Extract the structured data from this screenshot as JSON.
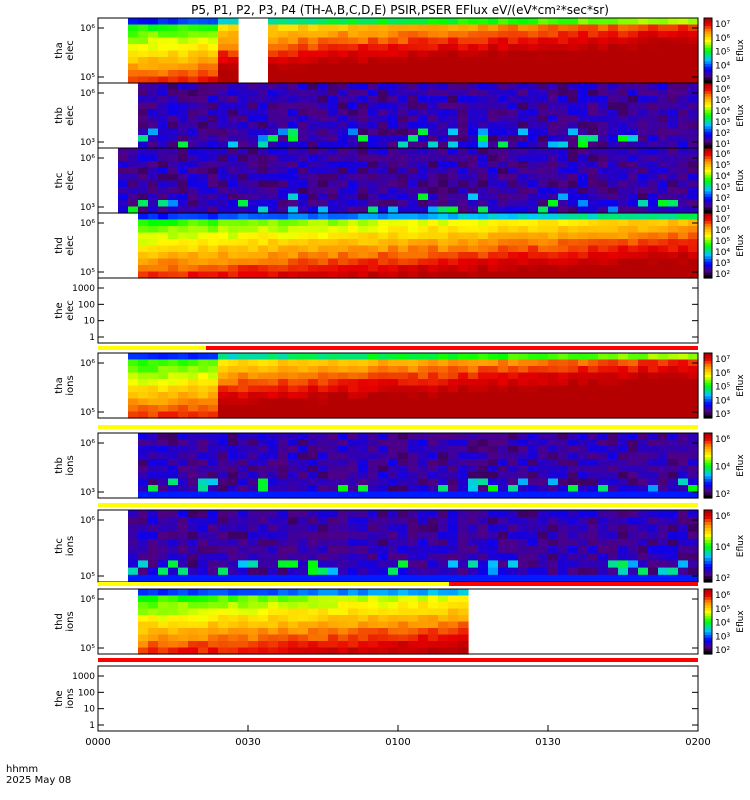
{
  "chart_data": {
    "type": "heatmap",
    "title": "P5, P1, P2, P3, P4 (TH-A,B,C,D,E) PSIR,PSER EFlux eV/(eV*cm²*sec*sr)",
    "xlabel_lines": [
      "hhmm",
      "2025 May 08"
    ],
    "x_ticks": [
      "0000",
      "0030",
      "0100",
      "0130",
      "0200"
    ],
    "colorbar_label": "Eflux",
    "panels": [
      {
        "id": "tha-elec",
        "label_line1": "tha",
        "label_line2": "elec",
        "y_ticks": [
          "10⁶",
          "10⁵"
        ],
        "cbar_ticks": [
          "10⁷",
          "10⁶",
          "10⁵",
          "10⁴",
          "10³"
        ],
        "cbar_range": [
          3,
          7.5
        ],
        "style": "fill",
        "gaps": [
          [
            0,
            0.042
          ],
          [
            0.24,
            0.28
          ]
        ],
        "bands": [
          [
            0.2,
            7.2
          ],
          [
            0.6,
            7.1
          ],
          [
            1.0,
            7.0
          ]
        ]
      },
      {
        "id": "thb-elec",
        "label_line1": "thb",
        "label_line2": "elec",
        "y_ticks": [
          "10⁶",
          "10³"
        ],
        "cbar_ticks": [
          "10⁶",
          "10⁵",
          "10⁴",
          "10³",
          "10²",
          "10¹"
        ],
        "cbar_range": [
          0,
          6
        ],
        "style": "noise",
        "gaps": [
          [
            0,
            0.075
          ]
        ]
      },
      {
        "id": "thc-elec",
        "label_line1": "thc",
        "label_line2": "elec",
        "y_ticks": [
          "10⁶",
          "10³"
        ],
        "cbar_ticks": [
          "10⁶",
          "10⁵",
          "10⁴",
          "10³",
          "10²",
          "10¹"
        ],
        "cbar_range": [
          0,
          6
        ],
        "style": "noise",
        "gaps": [
          [
            0,
            0.04
          ]
        ]
      },
      {
        "id": "thd-elec",
        "label_line1": "thd",
        "label_line2": "elec",
        "y_ticks": [
          "10⁶",
          "10⁵"
        ],
        "cbar_ticks": [
          "10⁷",
          "10⁶",
          "10⁵",
          "10⁴",
          "10³",
          "10²"
        ],
        "cbar_range": [
          2,
          7.5
        ],
        "style": "fill",
        "gaps": [
          [
            0,
            0.07
          ]
        ]
      },
      {
        "id": "the-elec",
        "label_line1": "the",
        "label_line2": "elec",
        "y_ticks": [
          "1000",
          "100",
          "10",
          "1"
        ],
        "style": "empty"
      },
      {
        "id": "tha-ions",
        "label_line1": "tha",
        "label_line2": "ions",
        "y_ticks": [
          "10⁶",
          "10⁵"
        ],
        "cbar_ticks": [
          "10⁷",
          "10⁶",
          "10⁵",
          "10⁴",
          "10³"
        ],
        "cbar_range": [
          3,
          7.5
        ],
        "style": "fill",
        "gaps": [
          [
            0,
            0.042
          ]
        ]
      },
      {
        "id": "thb-ions",
        "label_line1": "thb",
        "label_line2": "ions",
        "y_ticks": [
          "10⁶",
          "10³"
        ],
        "cbar_ticks": [
          "10⁶",
          "10⁴",
          "10²"
        ],
        "cbar_range": [
          1,
          6.5
        ],
        "style": "noise",
        "gaps": [
          [
            0,
            0.075
          ]
        ]
      },
      {
        "id": "thc-ions",
        "label_line1": "thc",
        "label_line2": "ions",
        "y_ticks": [
          "10⁶",
          "10⁵"
        ],
        "cbar_ticks": [
          "10⁶",
          "10⁴",
          "10²"
        ],
        "cbar_range": [
          1,
          6.5
        ],
        "style": "noise",
        "gaps": [
          [
            0,
            0.045
          ]
        ]
      },
      {
        "id": "thd-ions",
        "label_line1": "thd",
        "label_line2": "ions",
        "y_ticks": [
          "10⁶",
          "10⁵"
        ],
        "cbar_ticks": [
          "10⁶",
          "10⁵",
          "10⁴",
          "10³",
          "10²"
        ],
        "cbar_range": [
          2,
          6.5
        ],
        "style": "fill",
        "gaps": [
          [
            0,
            0.07
          ],
          [
            0.615,
            1.0
          ]
        ]
      },
      {
        "id": "the-ions",
        "label_line1": "the",
        "label_line2": "ions",
        "y_ticks": [
          "1000",
          "100",
          "10",
          "1"
        ],
        "style": "empty"
      }
    ],
    "mode_bars": [
      {
        "after_panel": "the-elec",
        "segments": [
          {
            "from": 0,
            "to": 0.18,
            "color": "#ffff00"
          },
          {
            "from": 0.18,
            "to": 1,
            "color": "#ff0000"
          }
        ]
      },
      {
        "after_panel": "tha-ions",
        "segments": [
          {
            "from": 0,
            "to": 1,
            "color": "#ffff00"
          }
        ]
      },
      {
        "after_panel": "thb-ions",
        "segments": [
          {
            "from": 0,
            "to": 1,
            "color": "#ffff00"
          }
        ]
      },
      {
        "after_panel": "thc-ions",
        "segments": [
          {
            "from": 0,
            "to": 0.585,
            "color": "#ffff00"
          },
          {
            "from": 0.585,
            "to": 1,
            "color": "#ff0000"
          }
        ]
      },
      {
        "after_panel": "thd-ions",
        "segments": [
          {
            "from": 0,
            "to": 1,
            "color": "#ff0000"
          }
        ]
      }
    ]
  }
}
